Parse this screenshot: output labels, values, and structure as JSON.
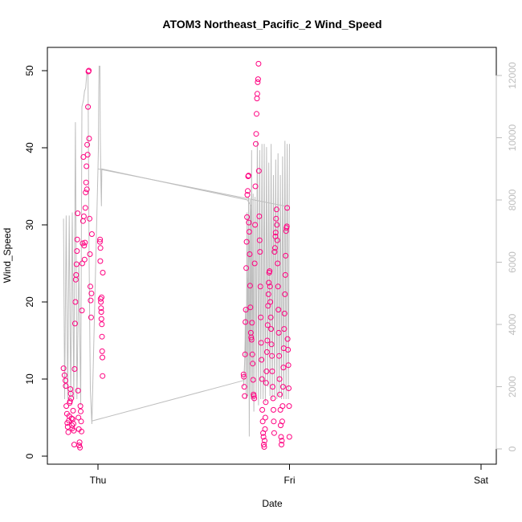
{
  "chart_data": {
    "type": "scatter",
    "title": "ATOM3 Northeast_Pacific_2 Wind_Speed",
    "xlabel": "Date",
    "ylabel": "Wind_Speed",
    "x_ticks": [
      "Thu",
      "Fri",
      "Sat"
    ],
    "y_ticks": [
      "0",
      "10",
      "20",
      "30",
      "40",
      "50"
    ],
    "y2_ticks": [
      "0",
      "2000",
      "4000",
      "6000",
      "8000",
      "10000",
      "12000"
    ],
    "ylim": [
      0,
      52
    ],
    "y2lim": [
      0,
      12400
    ],
    "grid": false,
    "legend": "none",
    "colors": {
      "points": "#ff0080",
      "line": "#bebebe"
    },
    "series": [
      {
        "type": "scatter",
        "axis": "left",
        "values": [
          [
            -0.18,
            11.4
          ],
          [
            -0.175,
            10.5
          ],
          [
            -0.17,
            9.8
          ],
          [
            -0.168,
            9.1
          ],
          [
            -0.165,
            6.5
          ],
          [
            -0.162,
            5.5
          ],
          [
            -0.16,
            4.3
          ],
          [
            -0.158,
            3.8
          ],
          [
            -0.155,
            3.1
          ],
          [
            -0.152,
            4.6
          ],
          [
            -0.15,
            5.2
          ],
          [
            -0.148,
            6.9
          ],
          [
            -0.146,
            7.1
          ],
          [
            -0.144,
            8.7
          ],
          [
            -0.142,
            8.1
          ],
          [
            -0.14,
            7.5
          ],
          [
            -0.138,
            4.9
          ],
          [
            -0.136,
            4.0
          ],
          [
            -0.134,
            3.6
          ],
          [
            -0.132,
            4.8
          ],
          [
            -0.13,
            5.9
          ],
          [
            -0.128,
            4.2
          ],
          [
            -0.126,
            3.3
          ],
          [
            -0.124,
            1.5
          ],
          [
            -0.122,
            11.3
          ],
          [
            -0.12,
            17.2
          ],
          [
            -0.118,
            20.0
          ],
          [
            -0.116,
            22.9
          ],
          [
            -0.114,
            23.5
          ],
          [
            -0.112,
            24.9
          ],
          [
            -0.11,
            26.6
          ],
          [
            -0.108,
            28.1
          ],
          [
            -0.106,
            31.5
          ],
          [
            -0.104,
            8.5
          ],
          [
            -0.102,
            5.0
          ],
          [
            -0.1,
            3.5
          ],
          [
            -0.098,
            1.4
          ],
          [
            -0.096,
            1.8
          ],
          [
            -0.094,
            1.1
          ],
          [
            -0.092,
            6.5
          ],
          [
            -0.09,
            5.8
          ],
          [
            -0.088,
            4.5
          ],
          [
            -0.086,
            3.2
          ],
          [
            -0.084,
            18.9
          ],
          [
            -0.082,
            25.0
          ],
          [
            -0.08,
            27.6
          ],
          [
            -0.078,
            30.5
          ],
          [
            -0.076,
            38.8
          ],
          [
            -0.074,
            31.1
          ],
          [
            -0.072,
            27.3
          ],
          [
            -0.07,
            25.5
          ],
          [
            -0.068,
            27.7
          ],
          [
            -0.066,
            32.2
          ],
          [
            -0.064,
            34.2
          ],
          [
            -0.062,
            35.5
          ],
          [
            -0.06,
            37.6
          ],
          [
            -0.058,
            34.6
          ],
          [
            -0.056,
            40.4
          ],
          [
            -0.054,
            39.1
          ],
          [
            -0.052,
            45.3
          ],
          [
            -0.05,
            49.9
          ],
          [
            -0.048,
            50.0
          ],
          [
            -0.046,
            41.2
          ],
          [
            -0.044,
            30.8
          ],
          [
            -0.042,
            26.2
          ],
          [
            -0.04,
            22.0
          ],
          [
            -0.038,
            20.2
          ],
          [
            -0.036,
            18.0
          ],
          [
            -0.034,
            21.1
          ],
          [
            -0.032,
            28.8
          ],
          [
            0.01,
            27.8
          ],
          [
            0.011,
            28.1
          ],
          [
            0.012,
            25.3
          ],
          [
            0.013,
            27.0
          ],
          [
            0.014,
            20.4
          ],
          [
            0.015,
            20.0
          ],
          [
            0.016,
            19.2
          ],
          [
            0.017,
            18.7
          ],
          [
            0.018,
            17.8
          ],
          [
            0.019,
            20.6
          ],
          [
            0.02,
            17.1
          ],
          [
            0.021,
            15.5
          ],
          [
            0.022,
            13.6
          ],
          [
            0.023,
            12.8
          ],
          [
            0.024,
            10.4
          ],
          [
            0.025,
            23.8
          ],
          [
            0.76,
            10.6
          ],
          [
            0.762,
            10.3
          ],
          [
            0.764,
            9.0
          ],
          [
            0.766,
            7.8
          ],
          [
            0.768,
            13.2
          ],
          [
            0.77,
            17.4
          ],
          [
            0.772,
            19.0
          ],
          [
            0.774,
            24.4
          ],
          [
            0.776,
            27.8
          ],
          [
            0.778,
            31.0
          ],
          [
            0.78,
            33.9
          ],
          [
            0.782,
            34.4
          ],
          [
            0.784,
            36.3
          ],
          [
            0.786,
            36.4
          ],
          [
            0.788,
            30.3
          ],
          [
            0.79,
            29.1
          ],
          [
            0.792,
            26.2
          ],
          [
            0.794,
            22.1
          ],
          [
            0.796,
            19.3
          ],
          [
            0.798,
            16.0
          ],
          [
            0.8,
            15.4
          ],
          [
            0.802,
            15.1
          ],
          [
            0.804,
            17.3
          ],
          [
            0.806,
            13.2
          ],
          [
            0.808,
            12.0
          ],
          [
            0.81,
            9.9
          ],
          [
            0.812,
            8.0
          ],
          [
            0.814,
            7.8
          ],
          [
            0.816,
            7.5
          ],
          [
            0.818,
            25.0
          ],
          [
            0.82,
            30.0
          ],
          [
            0.822,
            35.0
          ],
          [
            0.824,
            40.5
          ],
          [
            0.826,
            41.8
          ],
          [
            0.828,
            44.4
          ],
          [
            0.83,
            46.4
          ],
          [
            0.832,
            47.0
          ],
          [
            0.834,
            48.5
          ],
          [
            0.836,
            48.9
          ],
          [
            0.838,
            50.9
          ],
          [
            0.84,
            37.0
          ],
          [
            0.842,
            31.1
          ],
          [
            0.844,
            28.0
          ],
          [
            0.846,
            26.5
          ],
          [
            0.848,
            22.0
          ],
          [
            0.85,
            18.0
          ],
          [
            0.852,
            14.7
          ],
          [
            0.854,
            12.5
          ],
          [
            0.856,
            10.0
          ],
          [
            0.858,
            6.0
          ],
          [
            0.86,
            4.5
          ],
          [
            0.862,
            3.0
          ],
          [
            0.864,
            2.5
          ],
          [
            0.866,
            1.5
          ],
          [
            0.868,
            1.2
          ],
          [
            0.87,
            2.0
          ],
          [
            0.872,
            3.5
          ],
          [
            0.874,
            5.0
          ],
          [
            0.876,
            7.0
          ],
          [
            0.878,
            9.5
          ],
          [
            0.88,
            11.0
          ],
          [
            0.882,
            13.5
          ],
          [
            0.884,
            15.0
          ],
          [
            0.886,
            17.0
          ],
          [
            0.888,
            19.5
          ],
          [
            0.89,
            21.0
          ],
          [
            0.892,
            22.5
          ],
          [
            0.894,
            23.8
          ],
          [
            0.896,
            24.0
          ],
          [
            0.898,
            22.0
          ],
          [
            0.9,
            20.0
          ],
          [
            0.902,
            18.0
          ],
          [
            0.904,
            16.5
          ],
          [
            0.906,
            14.5
          ],
          [
            0.908,
            13.0
          ],
          [
            0.91,
            11.0
          ],
          [
            0.912,
            9.0
          ],
          [
            0.914,
            7.5
          ],
          [
            0.916,
            6.0
          ],
          [
            0.918,
            4.5
          ],
          [
            0.92,
            3.0
          ],
          [
            0.922,
            26.5
          ],
          [
            0.924,
            27.0
          ],
          [
            0.926,
            28.5
          ],
          [
            0.928,
            29.0
          ],
          [
            0.93,
            30.8
          ],
          [
            0.932,
            32.0
          ],
          [
            0.934,
            30.0
          ],
          [
            0.936,
            28.0
          ],
          [
            0.938,
            25.0
          ],
          [
            0.94,
            22.0
          ],
          [
            0.942,
            19.0
          ],
          [
            0.944,
            16.0
          ],
          [
            0.946,
            13.0
          ],
          [
            0.948,
            10.0
          ],
          [
            0.95,
            8.0
          ],
          [
            0.952,
            6.0
          ],
          [
            0.954,
            4.0
          ],
          [
            0.956,
            2.5
          ],
          [
            0.958,
            1.5
          ],
          [
            0.96,
            2.0
          ],
          [
            0.962,
            4.5
          ],
          [
            0.964,
            6.5
          ],
          [
            0.966,
            9.0
          ],
          [
            0.968,
            11.5
          ],
          [
            0.97,
            14.0
          ],
          [
            0.972,
            16.5
          ],
          [
            0.974,
            18.5
          ],
          [
            0.976,
            21.0
          ],
          [
            0.978,
            23.5
          ],
          [
            0.98,
            26.0
          ],
          [
            0.982,
            29.2
          ],
          [
            0.984,
            29.6
          ],
          [
            0.986,
            29.8
          ],
          [
            0.988,
            32.2
          ],
          [
            0.99,
            15.2
          ],
          [
            0.992,
            13.8
          ],
          [
            0.994,
            11.8
          ],
          [
            0.996,
            8.8
          ],
          [
            0.998,
            6.5
          ],
          [
            0.999,
            2.5
          ]
        ]
      },
      {
        "type": "line",
        "axis": "right",
        "values": [
          [
            -0.18,
            7400
          ],
          [
            -0.174,
            1600
          ],
          [
            -0.166,
            7500
          ],
          [
            -0.158,
            1600
          ],
          [
            -0.15,
            7500
          ],
          [
            -0.142,
            1600
          ],
          [
            -0.134,
            7600
          ],
          [
            -0.126,
            1600
          ],
          [
            -0.118,
            10500
          ],
          [
            -0.11,
            1600
          ],
          [
            -0.1,
            6000
          ],
          [
            -0.09,
            1400
          ],
          [
            -0.084,
            11000
          ],
          [
            -0.076,
            11200
          ],
          [
            -0.07,
            11500
          ],
          [
            -0.064,
            11600
          ],
          [
            -0.058,
            12100
          ],
          [
            -0.052,
            12000
          ],
          [
            -0.046,
            6000
          ],
          [
            -0.04,
            1900
          ],
          [
            -0.032,
            800
          ],
          [
            0.0,
            9000
          ],
          [
            0.002,
            9600
          ],
          [
            0.004,
            11600
          ],
          [
            0.006,
            12300
          ],
          [
            0.01,
            12300
          ],
          [
            0.012,
            10000
          ],
          [
            0.016,
            8400
          ],
          [
            0.018,
            7800
          ],
          [
            0.02,
            9000
          ],
          [
            0.78,
            8000
          ],
          [
            0.8,
            7800
          ],
          [
            0.76,
            2000
          ],
          [
            0.764,
            2300
          ],
          [
            0.768,
            3500
          ],
          [
            0.77,
            4500
          ],
          [
            0.774,
            1600
          ],
          [
            0.778,
            7600
          ],
          [
            0.782,
            1700
          ],
          [
            0.786,
            8100
          ],
          [
            0.79,
            400
          ],
          [
            0.794,
            8000
          ],
          [
            0.798,
            1600
          ],
          [
            0.802,
            9600
          ],
          [
            0.806,
            1600
          ],
          [
            0.81,
            8200
          ],
          [
            0.814,
            1200
          ],
          [
            0.82,
            8100
          ],
          [
            0.826,
            1700
          ],
          [
            0.832,
            9900
          ],
          [
            0.838,
            1400
          ],
          [
            0.844,
            9600
          ],
          [
            0.85,
            1600
          ],
          [
            0.856,
            9800
          ],
          [
            0.862,
            1600
          ],
          [
            0.868,
            9800
          ],
          [
            0.874,
            1500
          ],
          [
            0.88,
            9700
          ],
          [
            0.886,
            2000
          ],
          [
            0.892,
            9200
          ],
          [
            0.898,
            1700
          ],
          [
            0.904,
            9800
          ],
          [
            0.91,
            1600
          ],
          [
            0.916,
            8800
          ],
          [
            0.922,
            1700
          ],
          [
            0.928,
            9300
          ],
          [
            0.934,
            1600
          ],
          [
            0.94,
            9500
          ],
          [
            0.946,
            1700
          ],
          [
            0.952,
            8800
          ],
          [
            0.958,
            1600
          ],
          [
            0.964,
            9400
          ],
          [
            0.97,
            1600
          ],
          [
            0.976,
            9900
          ],
          [
            0.982,
            1600
          ],
          [
            0.988,
            9800
          ],
          [
            0.994,
            1600
          ],
          [
            1.0,
            9800
          ]
        ]
      },
      {
        "type": "line",
        "axis": "right",
        "values": [
          [
            -0.03,
            900
          ],
          [
            0.76,
            2200
          ]
        ]
      },
      {
        "type": "line",
        "axis": "right",
        "values": [
          [
            0.0,
            9000
          ],
          [
            0.98,
            7800
          ]
        ]
      }
    ]
  }
}
